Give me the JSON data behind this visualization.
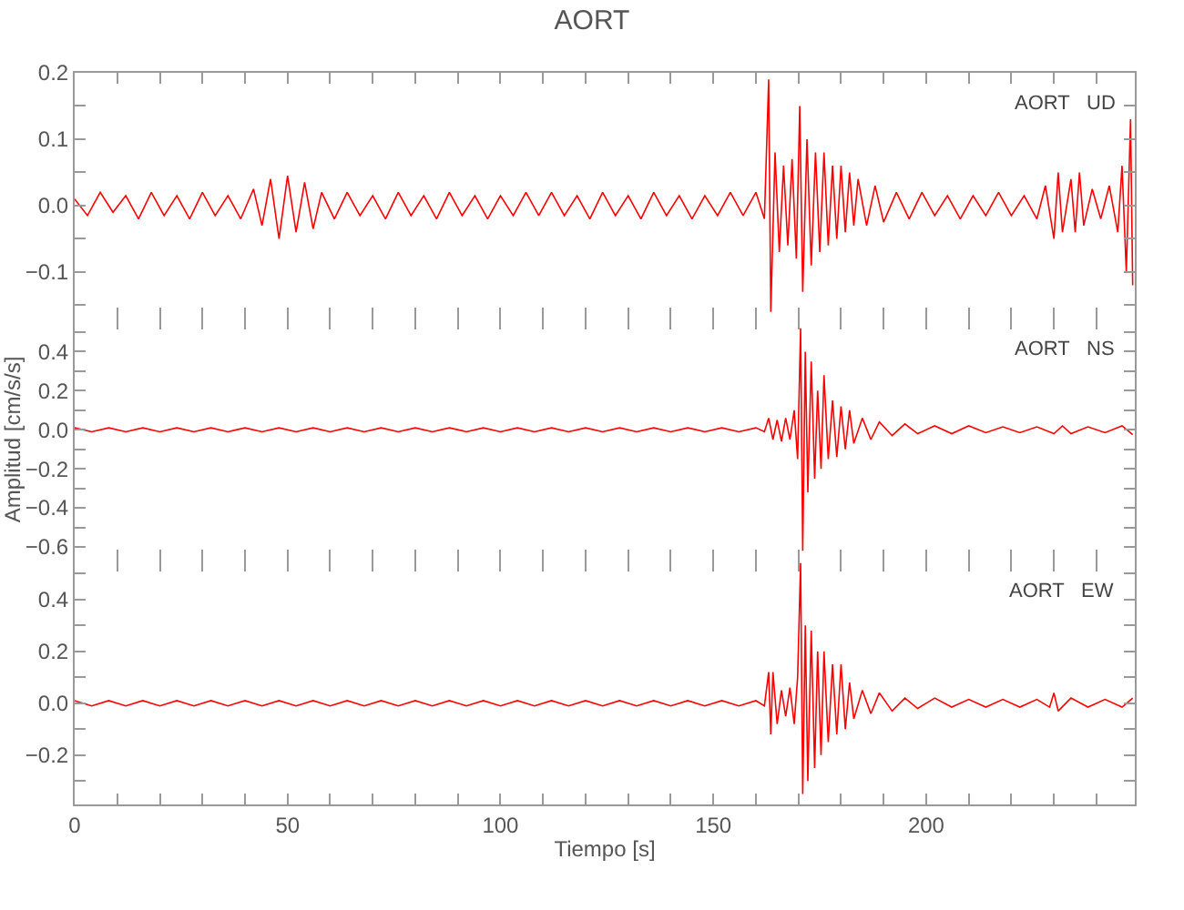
{
  "chart_data": [
    {
      "type": "line",
      "title": "AORT",
      "annotations": [
        "AORT   UD"
      ],
      "tick_labels": "y",
      "grid": false,
      "marker": "none",
      "xlim": [
        0,
        249
      ],
      "xticks": [
        0,
        {
          "value": 10,
          "label": null
        },
        {
          "value": 20,
          "label": null
        },
        {
          "value": 30,
          "label": null
        },
        {
          "value": 40,
          "label": null
        },
        50,
        {
          "value": 60,
          "label": null
        },
        {
          "value": 70,
          "label": null
        },
        {
          "value": 80,
          "label": null
        },
        {
          "value": 90,
          "label": null
        },
        100,
        {
          "value": 110,
          "label": null
        },
        {
          "value": 120,
          "label": null
        },
        {
          "value": 130,
          "label": null
        },
        {
          "value": 140,
          "label": null
        },
        150,
        {
          "value": 160,
          "label": null
        },
        {
          "value": 170,
          "label": null
        },
        {
          "value": 180,
          "label": null
        },
        {
          "value": 190,
          "label": null
        },
        200,
        {
          "value": 210,
          "label": null
        },
        {
          "value": 220,
          "label": null
        },
        {
          "value": 230,
          "label": null
        },
        {
          "value": 240,
          "label": null
        }
      ],
      "ylim": [
        -0.17,
        0.2
      ],
      "yticks": [
        {
          "value": -0.15,
          "label": null
        },
        {
          "value": -0.1,
          "label": "−0.1"
        },
        {
          "value": -0.05,
          "label": null
        },
        {
          "value": 0,
          "label": "0.0"
        },
        {
          "value": 0.05,
          "label": null
        },
        0.1,
        {
          "value": 0.15,
          "label": null
        },
        0.2
      ],
      "series": [
        {
          "color": "#ff0000",
          "x": [
            0,
            3,
            6,
            9,
            12,
            15,
            18,
            21,
            24,
            27,
            30,
            33,
            36,
            39,
            42,
            44,
            46,
            48,
            50,
            52,
            54,
            56,
            58,
            61,
            64,
            67,
            70,
            73,
            76,
            79,
            82,
            85,
            88,
            91,
            94,
            97,
            100,
            103,
            106,
            109,
            112,
            115,
            118,
            121,
            124,
            127,
            130,
            133,
            136,
            139,
            142,
            145,
            148,
            151,
            154,
            157,
            160,
            162,
            163,
            163.5,
            164.5,
            165.5,
            166.5,
            167.5,
            168.5,
            169.5,
            170.3,
            171,
            172,
            173,
            174,
            175,
            176,
            177,
            178,
            179,
            180,
            181,
            182,
            183,
            184,
            186,
            188,
            190,
            193,
            196,
            199,
            202,
            205,
            208,
            211,
            214,
            217,
            220,
            223,
            226,
            228,
            230,
            231,
            232,
            234,
            235,
            236,
            237,
            239,
            241,
            243,
            245,
            246,
            247,
            248,
            248.5
          ],
          "values": [
            0.01,
            -0.015,
            0.02,
            -0.01,
            0.015,
            -0.02,
            0.02,
            -0.015,
            0.015,
            -0.02,
            0.02,
            -0.015,
            0.015,
            -0.02,
            0.025,
            -0.03,
            0.04,
            -0.05,
            0.045,
            -0.04,
            0.035,
            -0.035,
            0.02,
            -0.02,
            0.02,
            -0.015,
            0.015,
            -0.02,
            0.02,
            -0.015,
            0.015,
            -0.02,
            0.02,
            -0.015,
            0.015,
            -0.02,
            0.015,
            -0.015,
            0.02,
            -0.015,
            0.02,
            -0.015,
            0.015,
            -0.02,
            0.02,
            -0.015,
            0.015,
            -0.02,
            0.02,
            -0.015,
            0.015,
            -0.02,
            0.015,
            -0.015,
            0.02,
            -0.015,
            0.02,
            -0.02,
            0.19,
            -0.16,
            0.08,
            -0.07,
            0.06,
            -0.06,
            0.07,
            -0.08,
            0.15,
            -0.13,
            0.1,
            -0.09,
            0.08,
            -0.07,
            0.08,
            -0.06,
            0.06,
            -0.05,
            0.06,
            -0.04,
            0.05,
            -0.03,
            0.04,
            -0.03,
            0.03,
            -0.025,
            0.02,
            -0.02,
            0.02,
            -0.015,
            0.015,
            -0.02,
            0.015,
            -0.015,
            0.02,
            -0.015,
            0.015,
            -0.02,
            0.03,
            -0.05,
            0.05,
            -0.04,
            0.04,
            -0.04,
            0.05,
            -0.03,
            0.025,
            -0.02,
            0.03,
            -0.04,
            0.06,
            -0.1,
            0.13,
            -0.12
          ]
        }
      ]
    },
    {
      "type": "line",
      "ylabel": "Amplitud [cm/s/s]",
      "annotations": [
        "AORT   NS"
      ],
      "tick_labels": "y",
      "grid": false,
      "marker": "none",
      "xlim": [
        0,
        249
      ],
      "xticks": [
        0,
        {
          "value": 10,
          "label": null
        },
        {
          "value": 20,
          "label": null
        },
        {
          "value": 30,
          "label": null
        },
        {
          "value": 40,
          "label": null
        },
        50,
        {
          "value": 60,
          "label": null
        },
        {
          "value": 70,
          "label": null
        },
        {
          "value": 80,
          "label": null
        },
        {
          "value": 90,
          "label": null
        },
        100,
        {
          "value": 110,
          "label": null
        },
        {
          "value": 120,
          "label": null
        },
        {
          "value": 130,
          "label": null
        },
        {
          "value": 140,
          "label": null
        },
        150,
        {
          "value": 160,
          "label": null
        },
        {
          "value": 170,
          "label": null
        },
        {
          "value": 180,
          "label": null
        },
        {
          "value": 190,
          "label": null
        },
        200,
        {
          "value": 210,
          "label": null
        },
        {
          "value": 220,
          "label": null
        },
        {
          "value": 230,
          "label": null
        },
        {
          "value": 240,
          "label": null
        }
      ],
      "ylim": [
        -0.67,
        0.57
      ],
      "yticks": [
        {
          "value": -0.6,
          "label": "−0.6"
        },
        {
          "value": -0.5,
          "label": null
        },
        {
          "value": -0.4,
          "label": "−0.4"
        },
        {
          "value": -0.3,
          "label": null
        },
        {
          "value": -0.2,
          "label": "−0.2"
        },
        {
          "value": -0.1,
          "label": null
        },
        {
          "value": 0,
          "label": "0.0"
        },
        {
          "value": 0.1,
          "label": null
        },
        0.2,
        {
          "value": 0.3,
          "label": null
        },
        0.4,
        {
          "value": 0.5,
          "label": null
        }
      ],
      "series": [
        {
          "color": "#ff0000",
          "x": [
            0,
            4,
            8,
            12,
            16,
            20,
            24,
            28,
            32,
            36,
            40,
            44,
            48,
            52,
            56,
            60,
            64,
            68,
            72,
            76,
            80,
            84,
            88,
            92,
            96,
            100,
            104,
            108,
            112,
            116,
            120,
            124,
            128,
            132,
            136,
            140,
            144,
            148,
            152,
            156,
            160,
            162,
            163,
            164,
            165,
            166,
            167,
            168,
            169,
            169.8,
            170.5,
            171,
            171.6,
            172.2,
            173,
            173.8,
            174.5,
            175.3,
            176,
            177,
            178,
            179,
            180,
            181,
            182,
            183,
            185,
            187,
            189,
            192,
            195,
            198,
            202,
            206,
            210,
            214,
            218,
            222,
            226,
            230,
            232,
            234,
            238,
            242,
            246,
            248.5
          ],
          "values": [
            0.01,
            -0.01,
            0.01,
            -0.01,
            0.01,
            -0.01,
            0.01,
            -0.01,
            0.01,
            -0.01,
            0.01,
            -0.01,
            0.01,
            -0.01,
            0.01,
            -0.01,
            0.01,
            -0.01,
            0.01,
            -0.01,
            0.01,
            -0.01,
            0.01,
            -0.01,
            0.01,
            -0.01,
            0.01,
            -0.01,
            0.01,
            -0.01,
            0.01,
            -0.01,
            0.01,
            -0.01,
            0.01,
            -0.01,
            0.01,
            -0.01,
            0.01,
            -0.01,
            0.01,
            -0.01,
            0.06,
            -0.05,
            0.05,
            -0.06,
            0.06,
            -0.05,
            0.1,
            -0.15,
            0.52,
            -0.62,
            0.4,
            -0.32,
            0.35,
            -0.25,
            0.2,
            -0.2,
            0.28,
            -0.15,
            0.15,
            -0.14,
            0.12,
            -0.1,
            0.1,
            -0.07,
            0.06,
            -0.05,
            0.04,
            -0.03,
            0.03,
            -0.02,
            0.02,
            -0.02,
            0.02,
            -0.015,
            0.015,
            -0.015,
            0.015,
            -0.02,
            0.02,
            -0.02,
            0.015,
            -0.015,
            0.02,
            -0.025
          ]
        }
      ]
    },
    {
      "type": "line",
      "xlabel": "Tiempo [s]",
      "annotations": [
        "AORT   EW"
      ],
      "grid": false,
      "marker": "none",
      "xlim": [
        0,
        249
      ],
      "xticks": [
        0,
        {
          "value": 10,
          "label": null
        },
        {
          "value": 20,
          "label": null
        },
        {
          "value": 30,
          "label": null
        },
        {
          "value": 40,
          "label": null
        },
        50,
        {
          "value": 60,
          "label": null
        },
        {
          "value": 70,
          "label": null
        },
        {
          "value": 80,
          "label": null
        },
        {
          "value": 90,
          "label": null
        },
        100,
        {
          "value": 110,
          "label": null
        },
        {
          "value": 120,
          "label": null
        },
        {
          "value": 130,
          "label": null
        },
        {
          "value": 140,
          "label": null
        },
        150,
        {
          "value": 160,
          "label": null
        },
        {
          "value": 170,
          "label": null
        },
        {
          "value": 180,
          "label": null
        },
        {
          "value": 190,
          "label": null
        },
        200,
        {
          "value": 210,
          "label": null
        },
        {
          "value": 220,
          "label": null
        },
        {
          "value": 230,
          "label": null
        },
        {
          "value": 240,
          "label": null
        }
      ],
      "ylim": [
        -0.39,
        0.55
      ],
      "yticks": [
        {
          "value": -0.3,
          "label": null
        },
        {
          "value": -0.2,
          "label": "−0.2"
        },
        {
          "value": -0.1,
          "label": null
        },
        {
          "value": 0,
          "label": "0.0"
        },
        {
          "value": 0.1,
          "label": null
        },
        0.2,
        {
          "value": 0.3,
          "label": null
        },
        0.4,
        {
          "value": 0.5,
          "label": null
        }
      ],
      "series": [
        {
          "color": "#ff0000",
          "x": [
            0,
            4,
            8,
            12,
            16,
            20,
            24,
            28,
            32,
            36,
            40,
            44,
            48,
            52,
            56,
            60,
            64,
            68,
            72,
            76,
            80,
            84,
            88,
            92,
            96,
            100,
            104,
            108,
            112,
            116,
            120,
            124,
            128,
            132,
            136,
            140,
            144,
            148,
            152,
            156,
            160,
            162,
            163,
            163.5,
            164,
            165,
            166,
            167,
            168,
            169,
            169.8,
            170.5,
            171,
            171.6,
            172.2,
            173,
            173.8,
            174.5,
            175.3,
            176,
            177,
            178,
            179,
            180,
            181,
            182,
            183,
            185,
            187,
            189,
            192,
            195,
            198,
            202,
            206,
            210,
            214,
            218,
            222,
            226,
            229,
            230,
            231,
            234,
            238,
            242,
            246,
            248.5
          ],
          "values": [
            0.01,
            -0.01,
            0.01,
            -0.01,
            0.01,
            -0.01,
            0.01,
            -0.01,
            0.01,
            -0.01,
            0.01,
            -0.01,
            0.01,
            -0.01,
            0.01,
            -0.01,
            0.01,
            -0.01,
            0.01,
            -0.01,
            0.01,
            -0.01,
            0.01,
            -0.01,
            0.01,
            -0.01,
            0.01,
            -0.01,
            0.01,
            -0.01,
            0.01,
            -0.01,
            0.01,
            -0.01,
            0.01,
            -0.01,
            0.01,
            -0.01,
            0.01,
            -0.01,
            0.01,
            -0.01,
            0.12,
            -0.12,
            0.12,
            -0.08,
            0.05,
            -0.05,
            0.06,
            -0.08,
            0.1,
            0.54,
            -0.35,
            0.3,
            -0.3,
            0.28,
            -0.25,
            0.2,
            -0.2,
            0.2,
            -0.15,
            0.15,
            -0.12,
            0.15,
            -0.1,
            0.08,
            -0.06,
            0.05,
            -0.04,
            0.04,
            -0.03,
            0.02,
            -0.02,
            0.02,
            -0.015,
            0.015,
            -0.015,
            0.015,
            -0.015,
            0.015,
            -0.015,
            0.04,
            -0.03,
            0.02,
            -0.015,
            0.015,
            -0.015,
            0.02
          ]
        }
      ]
    }
  ]
}
